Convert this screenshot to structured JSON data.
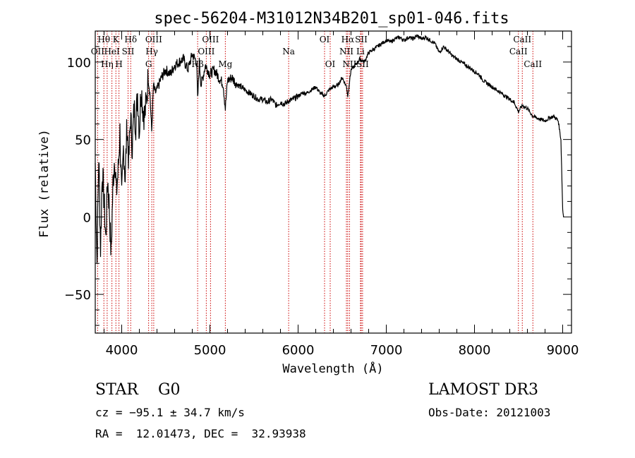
{
  "chart_data": {
    "type": "line",
    "title": "spec-56204-M31012N34B201_sp01-046.fits",
    "xlabel": "Wavelength (Å)",
    "ylabel": "Flux (relative)",
    "xlim": [
      3700,
      9100
    ],
    "ylim": [
      -75,
      120
    ],
    "xticks": [
      4000,
      5000,
      6000,
      7000,
      8000,
      9000
    ],
    "yticks": [
      -50,
      0,
      50,
      100
    ],
    "series": [
      {
        "name": "flux",
        "x": [
          3700,
          3720,
          3740,
          3760,
          3780,
          3800,
          3820,
          3840,
          3860,
          3880,
          3900,
          3920,
          3940,
          3960,
          3980,
          4000,
          4020,
          4040,
          4060,
          4080,
          4100,
          4120,
          4140,
          4160,
          4180,
          4200,
          4220,
          4240,
          4260,
          4280,
          4300,
          4320,
          4340,
          4360,
          4380,
          4400,
          4450,
          4500,
          4550,
          4600,
          4650,
          4700,
          4750,
          4800,
          4850,
          4861,
          4880,
          4900,
          4950,
          5000,
          5050,
          5100,
          5150,
          5175,
          5200,
          5250,
          5300,
          5350,
          5400,
          5450,
          5500,
          5550,
          5600,
          5650,
          5700,
          5750,
          5800,
          5850,
          5893,
          5950,
          6000,
          6050,
          6100,
          6150,
          6200,
          6250,
          6300,
          6350,
          6400,
          6450,
          6500,
          6550,
          6563,
          6600,
          6650,
          6700,
          6750,
          6800,
          6850,
          6900,
          6950,
          7000,
          7050,
          7100,
          7150,
          7200,
          7250,
          7300,
          7350,
          7400,
          7450,
          7500,
          7550,
          7600,
          7650,
          7700,
          7750,
          7800,
          7850,
          7900,
          7950,
          8000,
          8050,
          8100,
          8150,
          8200,
          8250,
          8300,
          8350,
          8400,
          8450,
          8498,
          8542,
          8600,
          8662,
          8700,
          8750,
          8800,
          8850,
          8900,
          8950,
          8980,
          9000,
          9010
        ],
        "values": [
          35,
          -30,
          40,
          -20,
          30,
          10,
          -15,
          25,
          5,
          -25,
          20,
          40,
          15,
          30,
          55,
          10,
          45,
          25,
          60,
          35,
          65,
          45,
          70,
          60,
          80,
          55,
          85,
          70,
          65,
          75,
          90,
          80,
          55,
          85,
          80,
          82,
          90,
          95,
          92,
          98,
          100,
          102,
          95,
          105,
          100,
          75,
          100,
          85,
          98,
          92,
          95,
          90,
          86,
          70,
          88,
          90,
          86,
          84,
          82,
          80,
          78,
          76,
          76,
          74,
          76,
          72,
          74,
          73,
          75,
          76,
          78,
          80,
          80,
          82,
          84,
          80,
          78,
          82,
          84,
          85,
          90,
          84,
          78,
          95,
          98,
          102,
          100,
          106,
          108,
          110,
          112,
          114,
          113,
          115,
          116,
          114,
          116,
          115,
          117,
          115,
          116,
          114,
          112,
          106,
          110,
          107,
          104,
          102,
          100,
          98,
          96,
          94,
          92,
          88,
          86,
          84,
          82,
          80,
          78,
          76,
          74,
          68,
          72,
          70,
          65,
          64,
          63,
          62,
          64,
          65,
          62,
          50,
          5,
          0
        ]
      }
    ],
    "emission_lines": [
      {
        "label": "Hθ",
        "wl": 3798,
        "row": 1
      },
      {
        "label": "OII",
        "wl": 3727,
        "row": 2
      },
      {
        "label": "Hη",
        "wl": 3835,
        "row": 3
      },
      {
        "label": "HeI",
        "wl": 3889,
        "row": 2
      },
      {
        "label": "K",
        "wl": 3934,
        "row": 1
      },
      {
        "label": "H",
        "wl": 3969,
        "row": 3
      },
      {
        "label": "SII",
        "wl": 4072,
        "row": 2
      },
      {
        "label": "Hδ",
        "wl": 4102,
        "row": 1
      },
      {
        "label": "OIII",
        "wl": 4363,
        "row": 1
      },
      {
        "label": "Hγ",
        "wl": 4341,
        "row": 2
      },
      {
        "label": "G",
        "wl": 4305,
        "row": 3
      },
      {
        "label": "OIII",
        "wl": 5007,
        "row": 1
      },
      {
        "label": "OIII",
        "wl": 4959,
        "row": 2
      },
      {
        "label": "Hβ",
        "wl": 4861,
        "row": 3
      },
      {
        "label": "Mg",
        "wl": 5175,
        "row": 3
      },
      {
        "label": "Na",
        "wl": 5893,
        "row": 2
      },
      {
        "label": "OI",
        "wl": 6300,
        "row": 1
      },
      {
        "label": "OI",
        "wl": 6364,
        "row": 3
      },
      {
        "label": "Hα",
        "wl": 6563,
        "row": 1
      },
      {
        "label": "SII",
        "wl": 6716,
        "row": 1
      },
      {
        "label": "NII",
        "wl": 6548,
        "row": 2
      },
      {
        "label": "Li",
        "wl": 6707,
        "row": 2
      },
      {
        "label": "NII",
        "wl": 6583,
        "row": 3
      },
      {
        "label": "SII",
        "wl": 6731,
        "row": 3
      },
      {
        "label": "CaII",
        "wl": 8542,
        "row": 1
      },
      {
        "label": "CaII",
        "wl": 8498,
        "row": 2
      },
      {
        "label": "CaII",
        "wl": 8662,
        "row": 3
      }
    ]
  },
  "info": {
    "classification": "STAR    G0",
    "survey": "LAMOST DR3",
    "redshift": "cz = −95.1 ± 34.7 km/s",
    "obs_date": "Obs-Date: 20121003",
    "coords": "RA =  12.01473, DEC =  32.93938"
  },
  "colors": {
    "line": "#000000",
    "marker": "#cc0000"
  }
}
